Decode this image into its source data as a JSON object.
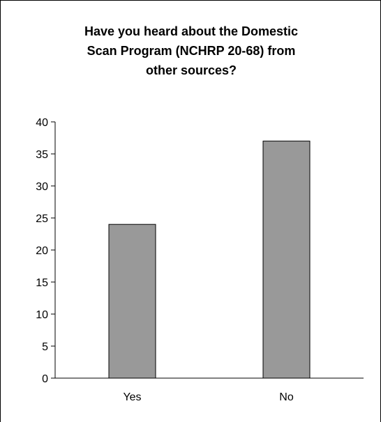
{
  "chart_data": {
    "type": "bar",
    "title_lines": [
      "Have you heard about the Domestic",
      "Scan Program (NCHRP 20-68) from",
      "other sources?"
    ],
    "categories": [
      "Yes",
      "No"
    ],
    "values": [
      24,
      37
    ],
    "ylim": [
      0,
      40
    ],
    "yticks": [
      "0",
      "5",
      "10",
      "15",
      "20",
      "25",
      "30",
      "35",
      "40"
    ],
    "grid": false,
    "legend": "none",
    "colors": {
      "bar_fill": "#999999",
      "bar_stroke": "#000000",
      "axis": "#000000"
    }
  }
}
